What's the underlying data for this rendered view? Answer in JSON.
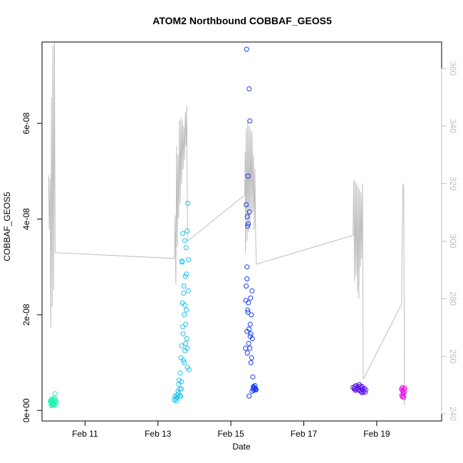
{
  "chart_data": {
    "type": "scatter",
    "title": "ATOM2 Northbound COBBAF_GEOS5",
    "xlabel": "Date",
    "ylabel": "COBBAF_GEOS5",
    "x_units": "days (Feb)",
    "x_ticks": [
      {
        "value": 11,
        "label": "Feb 11"
      },
      {
        "value": 13,
        "label": "Feb 13"
      },
      {
        "value": 15,
        "label": "Feb 15"
      },
      {
        "value": 17,
        "label": "Feb 17"
      },
      {
        "value": 19,
        "label": "Feb 19"
      }
    ],
    "xlim": [
      9.82,
      20.78
    ],
    "y_ticks": [
      {
        "value": 0,
        "label": "0e+00"
      },
      {
        "value": 2e-08,
        "label": "2e-08"
      },
      {
        "value": 4e-08,
        "label": "4e-08"
      },
      {
        "value": 6e-08,
        "label": "6e-08"
      }
    ],
    "ylim": [
      -2.2e-09,
      7.7e-08
    ],
    "y2_ticks": [
      {
        "value": 240,
        "label": "240"
      },
      {
        "value": 260,
        "label": "260"
      },
      {
        "value": 280,
        "label": "280"
      },
      {
        "value": 300,
        "label": "300"
      },
      {
        "value": 320,
        "label": "320"
      },
      {
        "value": 340,
        "label": "340"
      },
      {
        "value": 360,
        "label": "360"
      }
    ],
    "y2lim": [
      237.5,
      369.2
    ],
    "series": [
      {
        "color": "#1EF5B4",
        "points": [
          [
            10.05,
            1.8e-09
          ],
          [
            10.06,
            2.1e-09
          ],
          [
            10.07,
            1.6e-09
          ],
          [
            10.08,
            2.2e-09
          ],
          [
            10.09,
            1.3e-09
          ],
          [
            10.1,
            2e-09
          ],
          [
            10.11,
            1.1e-09
          ],
          [
            10.12,
            1.9e-09
          ],
          [
            10.13,
            1.5e-09
          ],
          [
            10.14,
            2.3e-09
          ],
          [
            10.15,
            1.2e-09
          ],
          [
            10.16,
            2.6e-09
          ],
          [
            10.17,
            1.7e-09
          ],
          [
            10.18,
            3.5e-09
          ],
          [
            10.19,
            2.2e-09
          ],
          [
            10.2,
            2e-09
          ],
          [
            10.21,
            1.6e-09
          ],
          [
            10.07,
            1e-09
          ],
          [
            10.12,
            1.3e-09
          ],
          [
            10.16,
            1.1e-09
          ],
          [
            10.09,
            2.4e-09
          ]
        ]
      },
      {
        "color": "#19C3F0",
        "points": [
          [
            13.45,
            2.2e-09
          ],
          [
            13.47,
            3e-09
          ],
          [
            13.49,
            2.5e-09
          ],
          [
            13.5,
            2e-09
          ],
          [
            13.52,
            3.2e-09
          ],
          [
            13.54,
            2.8e-09
          ],
          [
            13.55,
            4e-09
          ],
          [
            13.56,
            3.5e-09
          ],
          [
            13.57,
            5.5e-09
          ],
          [
            13.58,
            6.3e-09
          ],
          [
            13.6,
            4.5e-09
          ],
          [
            13.61,
            7.8e-09
          ],
          [
            13.62,
            3e-09
          ],
          [
            13.63,
            1.1e-08
          ],
          [
            13.64,
            6e-09
          ],
          [
            13.65,
            1.35e-08
          ],
          [
            13.66,
            3.12e-08
          ],
          [
            13.67,
            2.25e-08
          ],
          [
            13.68,
            3.7e-08
          ],
          [
            13.69,
            1.6e-08
          ],
          [
            13.7,
            1.05e-08
          ],
          [
            13.71,
            2.6e-08
          ],
          [
            13.72,
            2e-08
          ],
          [
            13.73,
            3.55e-08
          ],
          [
            13.74,
            1.25e-08
          ],
          [
            13.75,
            2.8e-08
          ],
          [
            13.76,
            1.8e-08
          ],
          [
            13.77,
            3.4e-08
          ],
          [
            13.78,
            2.1e-08
          ],
          [
            13.79,
            1.5e-08
          ],
          [
            13.8,
            3.75e-08
          ],
          [
            13.81,
            9e-09
          ],
          [
            13.82,
            4.33e-08
          ],
          [
            13.83,
            2.5e-08
          ],
          [
            13.84,
            3.15e-08
          ],
          [
            13.85,
            8.5e-09
          ],
          [
            13.66,
            3.1e-08
          ],
          [
            13.7,
            2.45e-08
          ],
          [
            13.74,
            2.2e-08
          ],
          [
            13.78,
            2.85e-08
          ],
          [
            13.72,
            1e-08
          ],
          [
            13.76,
            1.4e-08
          ],
          [
            13.68,
            1.75e-08
          ],
          [
            13.8,
            1.3e-08
          ],
          [
            13.64,
            4.5e-09
          ],
          [
            13.6,
            3e-09
          ]
        ]
      },
      {
        "color": "#193CF0",
        "points": [
          [
            15.4,
            1.3e-08
          ],
          [
            15.41,
            2.3e-08
          ],
          [
            15.42,
            2.6e-08
          ],
          [
            15.43,
            7.55e-08
          ],
          [
            15.44,
            3e-08
          ],
          [
            15.45,
            4.05e-08
          ],
          [
            15.46,
            2.1e-08
          ],
          [
            15.47,
            4.9e-08
          ],
          [
            15.48,
            3.9e-08
          ],
          [
            15.49,
            1.4e-08
          ],
          [
            15.5,
            6.72e-08
          ],
          [
            15.51,
            4.15e-08
          ],
          [
            15.52,
            6.05e-08
          ],
          [
            15.53,
            1.8e-08
          ],
          [
            15.54,
            2.35e-08
          ],
          [
            15.55,
            1.6e-08
          ],
          [
            15.56,
            2e-08
          ],
          [
            15.57,
            1.1e-08
          ],
          [
            15.58,
            2.5e-08
          ],
          [
            15.59,
            1.5e-08
          ],
          [
            15.6,
            7e-09
          ],
          [
            15.61,
            4.5e-09
          ],
          [
            15.62,
            5e-09
          ],
          [
            15.63,
            4.2e-09
          ],
          [
            15.64,
            4.8e-09
          ],
          [
            15.65,
            4.6e-09
          ],
          [
            15.66,
            5.2e-09
          ],
          [
            15.67,
            4.4e-09
          ],
          [
            15.68,
            4.5e-09
          ],
          [
            15.69,
            4.3e-09
          ],
          [
            15.42,
            4.3e-08
          ],
          [
            15.44,
            2.75e-08
          ],
          [
            15.46,
            3.85e-08
          ],
          [
            15.48,
            2.25e-08
          ],
          [
            15.5,
            1.7e-08
          ],
          [
            15.52,
            1.3e-08
          ],
          [
            15.45,
            1.2e-08
          ],
          [
            15.53,
            1.55e-08
          ],
          [
            15.47,
            2.05e-08
          ],
          [
            15.5,
            3e-09
          ],
          [
            15.55,
            1e-08
          ],
          [
            15.44,
            1.65e-08
          ],
          [
            15.58,
            4e-09
          ],
          [
            15.62,
            4.9e-09
          ]
        ]
      },
      {
        "color": "#5A14E6",
        "points": [
          [
            18.35,
            4.8e-09
          ],
          [
            18.38,
            4.5e-09
          ],
          [
            18.4,
            5e-09
          ],
          [
            18.42,
            4.2e-09
          ],
          [
            18.44,
            5.2e-09
          ],
          [
            18.46,
            4.6e-09
          ],
          [
            18.48,
            4.9e-09
          ],
          [
            18.5,
            4.3e-09
          ],
          [
            18.52,
            5.4e-09
          ],
          [
            18.54,
            4.1e-09
          ],
          [
            18.56,
            4.7e-09
          ],
          [
            18.58,
            3.9e-09
          ],
          [
            18.6,
            5e-09
          ],
          [
            18.62,
            4.4e-09
          ],
          [
            18.64,
            4e-09
          ],
          [
            18.66,
            4.6e-09
          ],
          [
            18.68,
            3.8e-09
          ],
          [
            18.7,
            4.3e-09
          ],
          [
            18.45,
            4.4e-09
          ],
          [
            18.55,
            5.1e-09
          ],
          [
            18.6,
            3.7e-09
          ],
          [
            18.5,
            4.8e-09
          ],
          [
            18.4,
            4.6e-09
          ]
        ]
      },
      {
        "color": "#E614E6",
        "points": [
          [
            19.68,
            4.5e-09
          ],
          [
            19.69,
            3.2e-09
          ],
          [
            19.7,
            2.9e-09
          ],
          [
            19.71,
            4.8e-09
          ],
          [
            19.72,
            4e-09
          ],
          [
            19.73,
            3.6e-09
          ],
          [
            19.74,
            2.7e-09
          ],
          [
            19.75,
            4.4e-09
          ],
          [
            19.76,
            3.9e-09
          ],
          [
            19.77,
            4.7e-09
          ],
          [
            19.7,
            4.2e-09
          ],
          [
            19.73,
            3e-09
          ]
        ]
      }
    ],
    "secondary_line": {
      "color": "#bebebe",
      "points": [
        [
          10.0,
          323
        ],
        [
          10.02,
          304
        ],
        [
          10.04,
          322
        ],
        [
          10.06,
          270
        ],
        [
          10.08,
          350
        ],
        [
          10.1,
          277
        ],
        [
          10.12,
          368
        ],
        [
          10.14,
          283
        ],
        [
          10.16,
          369
        ],
        [
          10.18,
          296
        ],
        [
          13.45,
          294
        ],
        [
          13.47,
          309
        ],
        [
          13.49,
          285
        ],
        [
          13.51,
          333
        ],
        [
          13.53,
          298
        ],
        [
          13.55,
          330
        ],
        [
          13.57,
          308
        ],
        [
          13.59,
          342
        ],
        [
          13.61,
          313
        ],
        [
          13.63,
          343
        ],
        [
          13.65,
          320
        ],
        [
          13.67,
          342
        ],
        [
          13.69,
          325
        ],
        [
          13.71,
          340
        ],
        [
          13.73,
          328
        ],
        [
          13.75,
          345
        ],
        [
          13.77,
          333
        ],
        [
          13.79,
          347
        ],
        [
          13.81,
          300
        ],
        [
          15.38,
          316
        ],
        [
          15.39,
          331
        ],
        [
          15.4,
          296
        ],
        [
          15.42,
          339
        ],
        [
          15.44,
          300
        ],
        [
          15.46,
          342
        ],
        [
          15.48,
          303
        ],
        [
          15.5,
          340
        ],
        [
          15.52,
          305
        ],
        [
          15.54,
          339
        ],
        [
          15.56,
          310
        ],
        [
          15.58,
          338
        ],
        [
          15.6,
          310
        ],
        [
          15.62,
          330
        ],
        [
          15.64,
          304
        ],
        [
          15.66,
          325
        ],
        [
          15.68,
          300
        ],
        [
          15.7,
          292
        ],
        [
          18.35,
          302
        ],
        [
          18.37,
          321
        ],
        [
          18.39,
          286
        ],
        [
          18.41,
          321
        ],
        [
          18.43,
          288
        ],
        [
          18.45,
          320
        ],
        [
          18.47,
          282
        ],
        [
          18.49,
          319
        ],
        [
          18.51,
          280
        ],
        [
          18.53,
          318
        ],
        [
          18.55,
          291
        ],
        [
          18.57,
          317
        ],
        [
          18.59,
          294
        ],
        [
          18.61,
          320
        ],
        [
          18.63,
          252
        ],
        [
          19.68,
          278
        ],
        [
          19.7,
          300
        ],
        [
          19.72,
          320
        ],
        [
          19.74,
          318
        ],
        [
          19.76,
          243
        ]
      ]
    }
  }
}
